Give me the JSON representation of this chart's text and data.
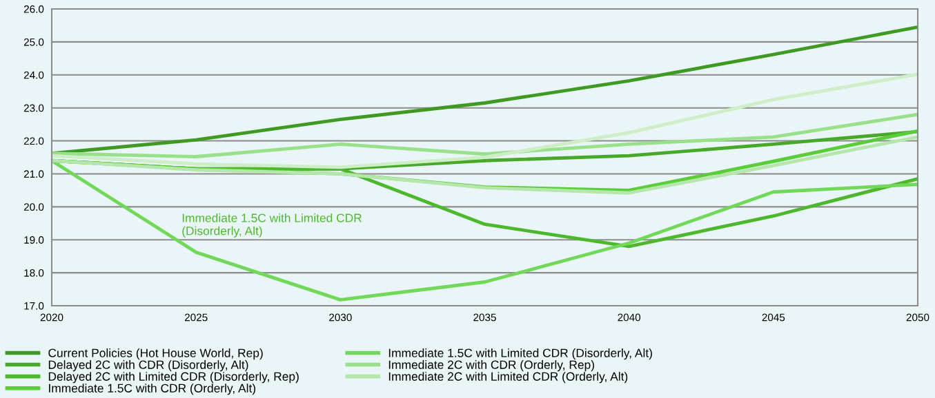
{
  "chart_data": {
    "type": "line",
    "x": [
      2020,
      2025,
      2030,
      2035,
      2040,
      2045,
      2050
    ],
    "xlim": [
      2020,
      2050
    ],
    "xticks": [
      2020,
      2025,
      2030,
      2035,
      2040,
      2045,
      2050
    ],
    "ylim": [
      17,
      26
    ],
    "yticks": [
      {
        "value": 17,
        "label": "17.0"
      },
      {
        "value": 18,
        "label": "18.0"
      },
      {
        "value": 19,
        "label": "19.0"
      },
      {
        "value": 20,
        "label": "20.0"
      },
      {
        "value": 21,
        "label": "21.0"
      },
      {
        "value": 22,
        "label": "22.0"
      },
      {
        "value": 23,
        "label": "23.0"
      },
      {
        "value": 24,
        "label": "24.0"
      },
      {
        "value": 25,
        "label": "25.0"
      },
      {
        "value": 26,
        "label": "26.0"
      }
    ],
    "grid": "y",
    "legend": "bottom",
    "marker": "none",
    "line_style": "solid",
    "series": [
      {
        "name": "Current Policies (Hot House World, Rep)",
        "color": "#3f9a24",
        "values": [
          21.62,
          22.03,
          22.65,
          23.15,
          23.82,
          24.62,
          25.45
        ]
      },
      {
        "name": "Delayed 2C with CDR (Disorderly, Alt)",
        "color": "#47a82a",
        "values": [
          21.4,
          21.15,
          21.15,
          21.4,
          21.55,
          21.9,
          22.28
        ]
      },
      {
        "name": "Delayed 2C with Limited CDR (Disorderly, Rep)",
        "color": "#4db82e",
        "values": [
          21.4,
          21.15,
          21.15,
          19.47,
          18.8,
          19.72,
          20.85
        ]
      },
      {
        "name": "Immediate 1.5C with CDR (Orderly, Alt)",
        "color": "#5bcc3a",
        "values": [
          21.4,
          21.15,
          21.0,
          20.6,
          20.5,
          21.38,
          22.3
        ]
      },
      {
        "name": "Immediate 1.5C with Limited CDR (Disorderly, Alt)",
        "color": "#72d85a",
        "values": [
          21.4,
          18.62,
          17.18,
          17.72,
          18.9,
          20.45,
          20.68
        ]
      },
      {
        "name": "Immediate 2C with CDR (Orderly, Rep)",
        "color": "#98e08a",
        "values": [
          21.62,
          21.52,
          21.9,
          21.6,
          21.9,
          22.12,
          22.8
        ]
      },
      {
        "name": "Immediate 2C with Limited CDR (Orderly, Alt)",
        "color": "#b5e6ab",
        "values": [
          21.4,
          21.12,
          21.0,
          20.58,
          20.42,
          21.25,
          22.12
        ]
      },
      {
        "color": "#cdeec6",
        "values": [
          21.55,
          21.3,
          21.2,
          21.5,
          22.25,
          23.25,
          24.02
        ]
      }
    ],
    "annotations": [
      "Immediate 1.5C with Limited CDR\n(Disorderly, Alt)"
    ]
  }
}
